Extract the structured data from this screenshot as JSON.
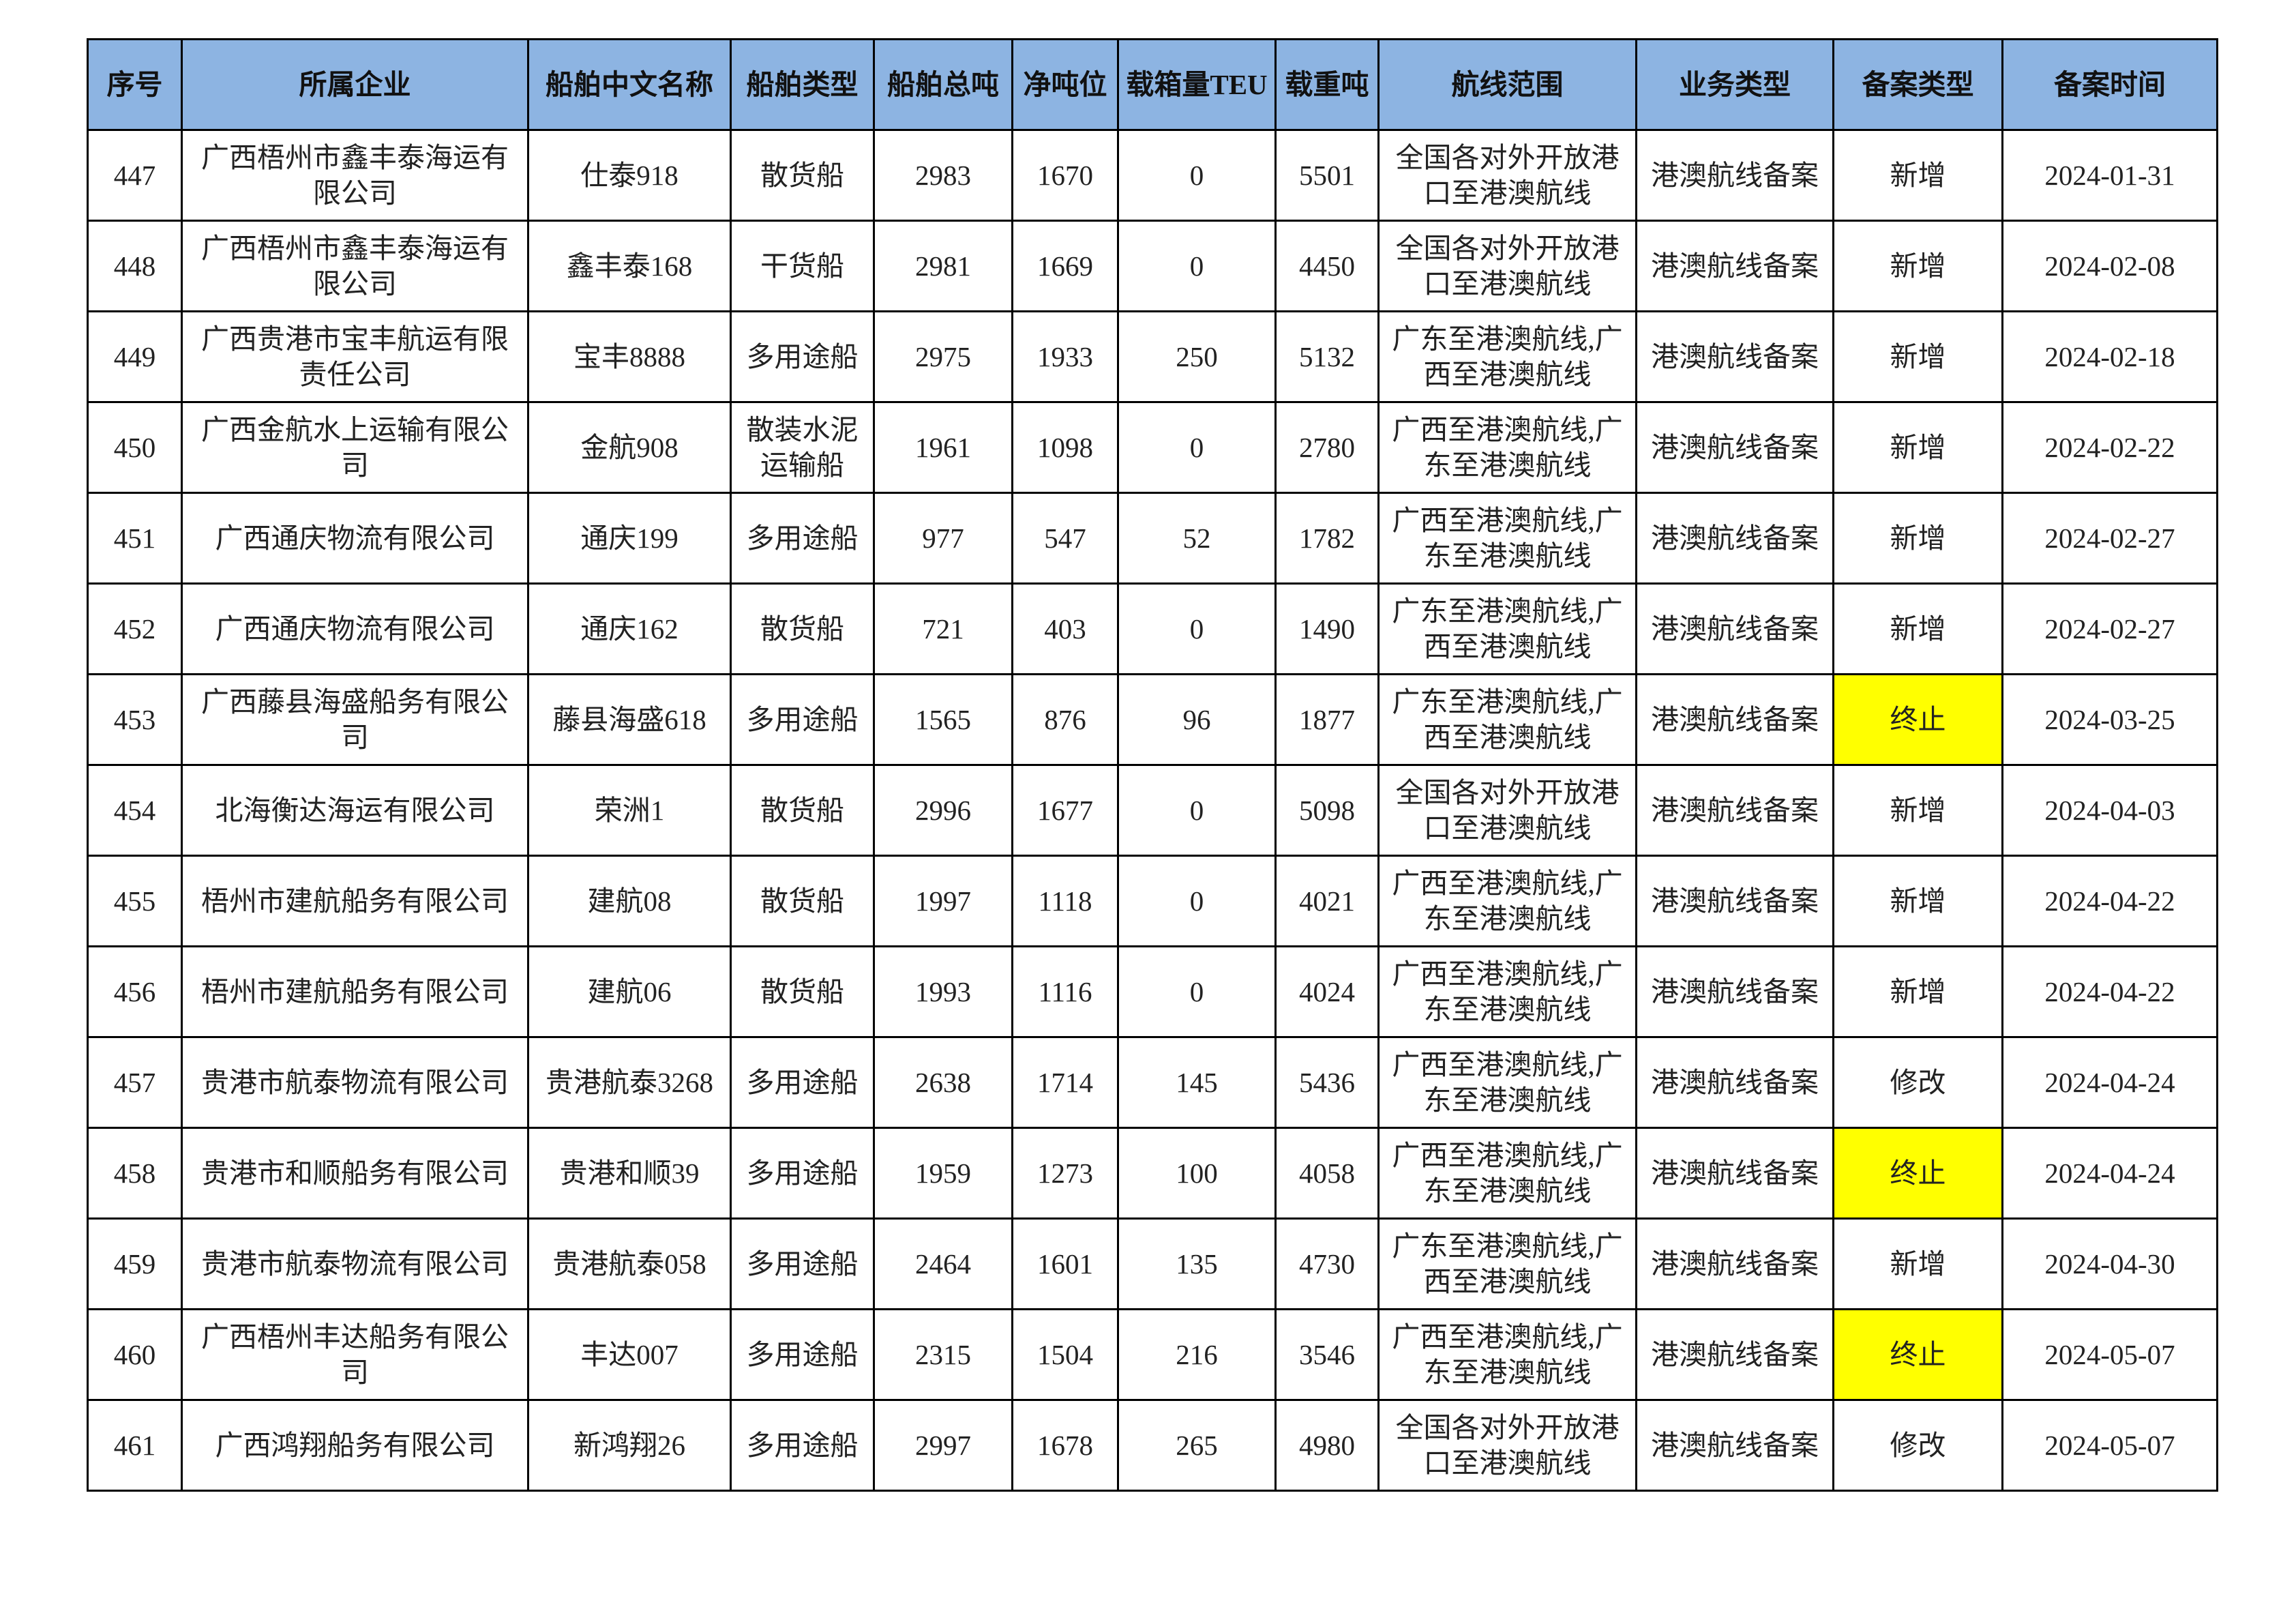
{
  "headers": [
    "序号",
    "所属企业",
    "船舶中文名称",
    "船舶类型",
    "船舶总吨",
    "净吨位",
    "载箱量TEU",
    "载重吨",
    "航线范围",
    "业务类型",
    "备案类型",
    "备案时间"
  ],
  "highlight_color": "#FFFF00",
  "header_color": "#8DB4E2",
  "rows": [
    {
      "no": "447",
      "company": "广西梧州市鑫丰泰海运有限公司",
      "ship": "仕泰918",
      "type": "散货船",
      "gt": "2983",
      "nt": "1670",
      "teu": "0",
      "dwt": "5501",
      "route": "全国各对外开放港口至港澳航线",
      "biz": "港澳航线备案",
      "filing": "新增",
      "date": "2024-01-31",
      "highlight": false
    },
    {
      "no": "448",
      "company": "广西梧州市鑫丰泰海运有限公司",
      "ship": "鑫丰泰168",
      "type": "干货船",
      "gt": "2981",
      "nt": "1669",
      "teu": "0",
      "dwt": "4450",
      "route": "全国各对外开放港口至港澳航线",
      "biz": "港澳航线备案",
      "filing": "新增",
      "date": "2024-02-08",
      "highlight": false
    },
    {
      "no": "449",
      "company": "广西贵港市宝丰航运有限责任公司",
      "ship": "宝丰8888",
      "type": "多用途船",
      "gt": "2975",
      "nt": "1933",
      "teu": "250",
      "dwt": "5132",
      "route": "广东至港澳航线,广西至港澳航线",
      "biz": "港澳航线备案",
      "filing": "新增",
      "date": "2024-02-18",
      "highlight": false
    },
    {
      "no": "450",
      "company": "广西金航水上运输有限公司",
      "ship": "金航908",
      "type": "散装水泥运输船",
      "gt": "1961",
      "nt": "1098",
      "teu": "0",
      "dwt": "2780",
      "route": "广西至港澳航线,广东至港澳航线",
      "biz": "港澳航线备案",
      "filing": "新增",
      "date": "2024-02-22",
      "highlight": false
    },
    {
      "no": "451",
      "company": "广西通庆物流有限公司",
      "ship": "通庆199",
      "type": "多用途船",
      "gt": "977",
      "nt": "547",
      "teu": "52",
      "dwt": "1782",
      "route": "广西至港澳航线,广东至港澳航线",
      "biz": "港澳航线备案",
      "filing": "新增",
      "date": "2024-02-27",
      "highlight": false
    },
    {
      "no": "452",
      "company": "广西通庆物流有限公司",
      "ship": "通庆162",
      "type": "散货船",
      "gt": "721",
      "nt": "403",
      "teu": "0",
      "dwt": "1490",
      "route": "广东至港澳航线,广西至港澳航线",
      "biz": "港澳航线备案",
      "filing": "新增",
      "date": "2024-02-27",
      "highlight": false
    },
    {
      "no": "453",
      "company": "广西藤县海盛船务有限公司",
      "ship": "藤县海盛618",
      "type": "多用途船",
      "gt": "1565",
      "nt": "876",
      "teu": "96",
      "dwt": "1877",
      "route": "广东至港澳航线,广西至港澳航线",
      "biz": "港澳航线备案",
      "filing": "终止",
      "date": "2024-03-25",
      "highlight": true
    },
    {
      "no": "454",
      "company": "北海衡达海运有限公司",
      "ship": "荣洲1",
      "type": "散货船",
      "gt": "2996",
      "nt": "1677",
      "teu": "0",
      "dwt": "5098",
      "route": "全国各对外开放港口至港澳航线",
      "biz": "港澳航线备案",
      "filing": "新增",
      "date": "2024-04-03",
      "highlight": false
    },
    {
      "no": "455",
      "company": "梧州市建航船务有限公司",
      "ship": "建航08",
      "type": "散货船",
      "gt": "1997",
      "nt": "1118",
      "teu": "0",
      "dwt": "4021",
      "route": "广西至港澳航线,广东至港澳航线",
      "biz": "港澳航线备案",
      "filing": "新增",
      "date": "2024-04-22",
      "highlight": false
    },
    {
      "no": "456",
      "company": "梧州市建航船务有限公司",
      "ship": "建航06",
      "type": "散货船",
      "gt": "1993",
      "nt": "1116",
      "teu": "0",
      "dwt": "4024",
      "route": "广西至港澳航线,广东至港澳航线",
      "biz": "港澳航线备案",
      "filing": "新增",
      "date": "2024-04-22",
      "highlight": false
    },
    {
      "no": "457",
      "company": "贵港市航泰物流有限公司",
      "ship": "贵港航泰3268",
      "type": "多用途船",
      "gt": "2638",
      "nt": "1714",
      "teu": "145",
      "dwt": "5436",
      "route": "广西至港澳航线,广东至港澳航线",
      "biz": "港澳航线备案",
      "filing": "修改",
      "date": "2024-04-24",
      "highlight": false
    },
    {
      "no": "458",
      "company": "贵港市和顺船务有限公司",
      "ship": "贵港和顺39",
      "type": "多用途船",
      "gt": "1959",
      "nt": "1273",
      "teu": "100",
      "dwt": "4058",
      "route": "广西至港澳航线,广东至港澳航线",
      "biz": "港澳航线备案",
      "filing": "终止",
      "date": "2024-04-24",
      "highlight": true
    },
    {
      "no": "459",
      "company": "贵港市航泰物流有限公司",
      "ship": "贵港航泰058",
      "type": "多用途船",
      "gt": "2464",
      "nt": "1601",
      "teu": "135",
      "dwt": "4730",
      "route": "广东至港澳航线,广西至港澳航线",
      "biz": "港澳航线备案",
      "filing": "新增",
      "date": "2024-04-30",
      "highlight": false
    },
    {
      "no": "460",
      "company": "广西梧州丰达船务有限公司",
      "ship": "丰达007",
      "type": "多用途船",
      "gt": "2315",
      "nt": "1504",
      "teu": "216",
      "dwt": "3546",
      "route": "广西至港澳航线,广东至港澳航线",
      "biz": "港澳航线备案",
      "filing": "终止",
      "date": "2024-05-07",
      "highlight": true
    },
    {
      "no": "461",
      "company": "广西鸿翔船务有限公司",
      "ship": "新鸿翔26",
      "type": "多用途船",
      "gt": "2997",
      "nt": "1678",
      "teu": "265",
      "dwt": "4980",
      "route": "全国各对外开放港口至港澳航线",
      "biz": "港澳航线备案",
      "filing": "修改",
      "date": "2024-05-07",
      "highlight": false
    }
  ]
}
